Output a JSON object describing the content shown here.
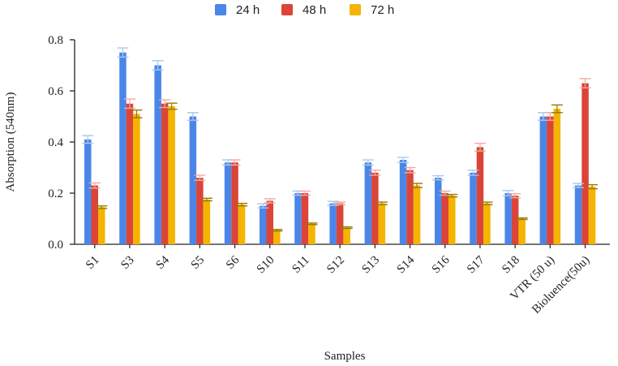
{
  "chart_data": {
    "type": "bar",
    "title": "",
    "xlabel": "Samples",
    "ylabel": "Absorption (540nm)",
    "ylim": [
      0,
      0.8
    ],
    "yticks": [
      "0.0",
      "0.2",
      "0.4",
      "0.6",
      "0.8"
    ],
    "grid": false,
    "legend_position": "top-center",
    "categories": [
      "S1",
      "S3",
      "S4",
      "S5",
      "S6",
      "S10",
      "S11",
      "S12",
      "S13",
      "S14",
      "S16",
      "S17",
      "S18",
      "VTR (50 u)",
      "Bioluence(50u)"
    ],
    "series": [
      {
        "name": "24 h",
        "color": "#4a86e8",
        "error_color": "#a8c7f0",
        "values": [
          0.41,
          0.75,
          0.7,
          0.5,
          0.32,
          0.15,
          0.2,
          0.16,
          0.32,
          0.33,
          0.26,
          0.28,
          0.2,
          0.5,
          0.23
        ],
        "errors": [
          0.015,
          0.018,
          0.018,
          0.015,
          0.01,
          0.008,
          0.008,
          0.008,
          0.01,
          0.01,
          0.008,
          0.01,
          0.01,
          0.015,
          0.008
        ]
      },
      {
        "name": "48 h",
        "color": "#db4437",
        "error_color": "#f0a9a1",
        "values": [
          0.23,
          0.55,
          0.55,
          0.26,
          0.32,
          0.17,
          0.2,
          0.16,
          0.28,
          0.29,
          0.2,
          0.38,
          0.19,
          0.5,
          0.63
        ],
        "errors": [
          0.01,
          0.018,
          0.015,
          0.01,
          0.01,
          0.008,
          0.008,
          0.005,
          0.01,
          0.01,
          0.008,
          0.015,
          0.008,
          0.015,
          0.018
        ]
      },
      {
        "name": "72 h",
        "color": "#f4b400",
        "error_color": "#9a7800",
        "values": [
          0.145,
          0.51,
          0.54,
          0.175,
          0.155,
          0.055,
          0.08,
          0.065,
          0.16,
          0.23,
          0.19,
          0.16,
          0.1,
          0.53,
          0.225
        ],
        "errors": [
          0.005,
          0.015,
          0.012,
          0.005,
          0.005,
          0.003,
          0.003,
          0.003,
          0.005,
          0.008,
          0.005,
          0.005,
          0.003,
          0.015,
          0.008
        ]
      }
    ]
  }
}
